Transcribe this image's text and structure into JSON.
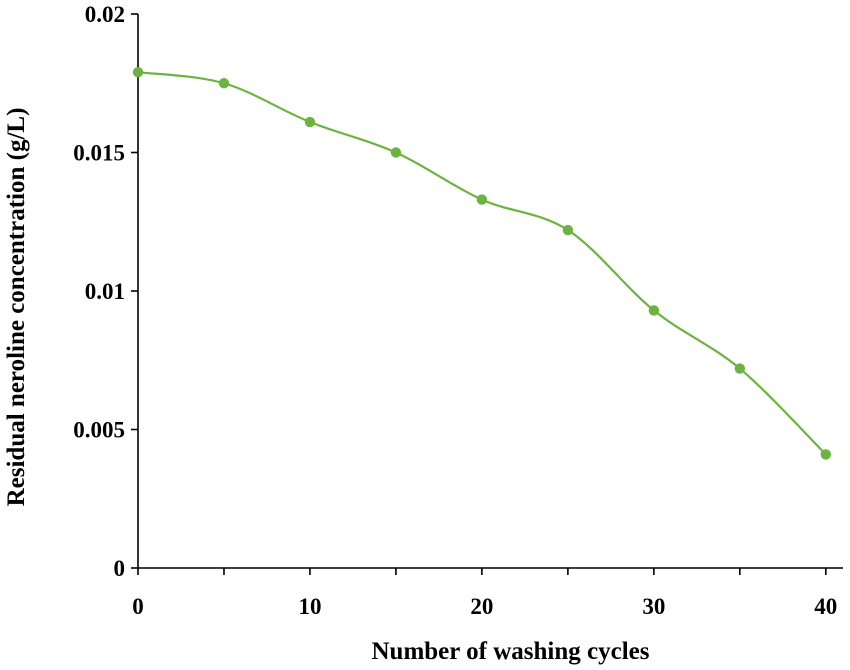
{
  "chart_data": {
    "type": "line",
    "xlabel": "Number of washing cycles",
    "ylabel": "Residual neroline concentration (g/L)",
    "x": [
      0,
      5,
      10,
      15,
      20,
      25,
      30,
      35,
      40
    ],
    "series": [
      {
        "values": [
          0.0179,
          0.0175,
          0.0161,
          0.015,
          0.0133,
          0.0122,
          0.0093,
          0.0072,
          0.0041
        ],
        "color": "#6db33f",
        "marker": "circle",
        "smooth": true
      }
    ],
    "xlim": [
      0,
      41
    ],
    "ylim": [
      0,
      0.02
    ],
    "xticks": [
      0,
      10,
      20,
      30,
      40
    ],
    "xtick_labels": [
      "0",
      "10",
      "20",
      "30",
      "40"
    ],
    "yticks": [
      0,
      0.005,
      0.01,
      0.015,
      0.02
    ],
    "ytick_labels": [
      "0",
      "0.005",
      "0.01",
      "0.015",
      "0.02"
    ],
    "grid": false,
    "legend": false
  }
}
